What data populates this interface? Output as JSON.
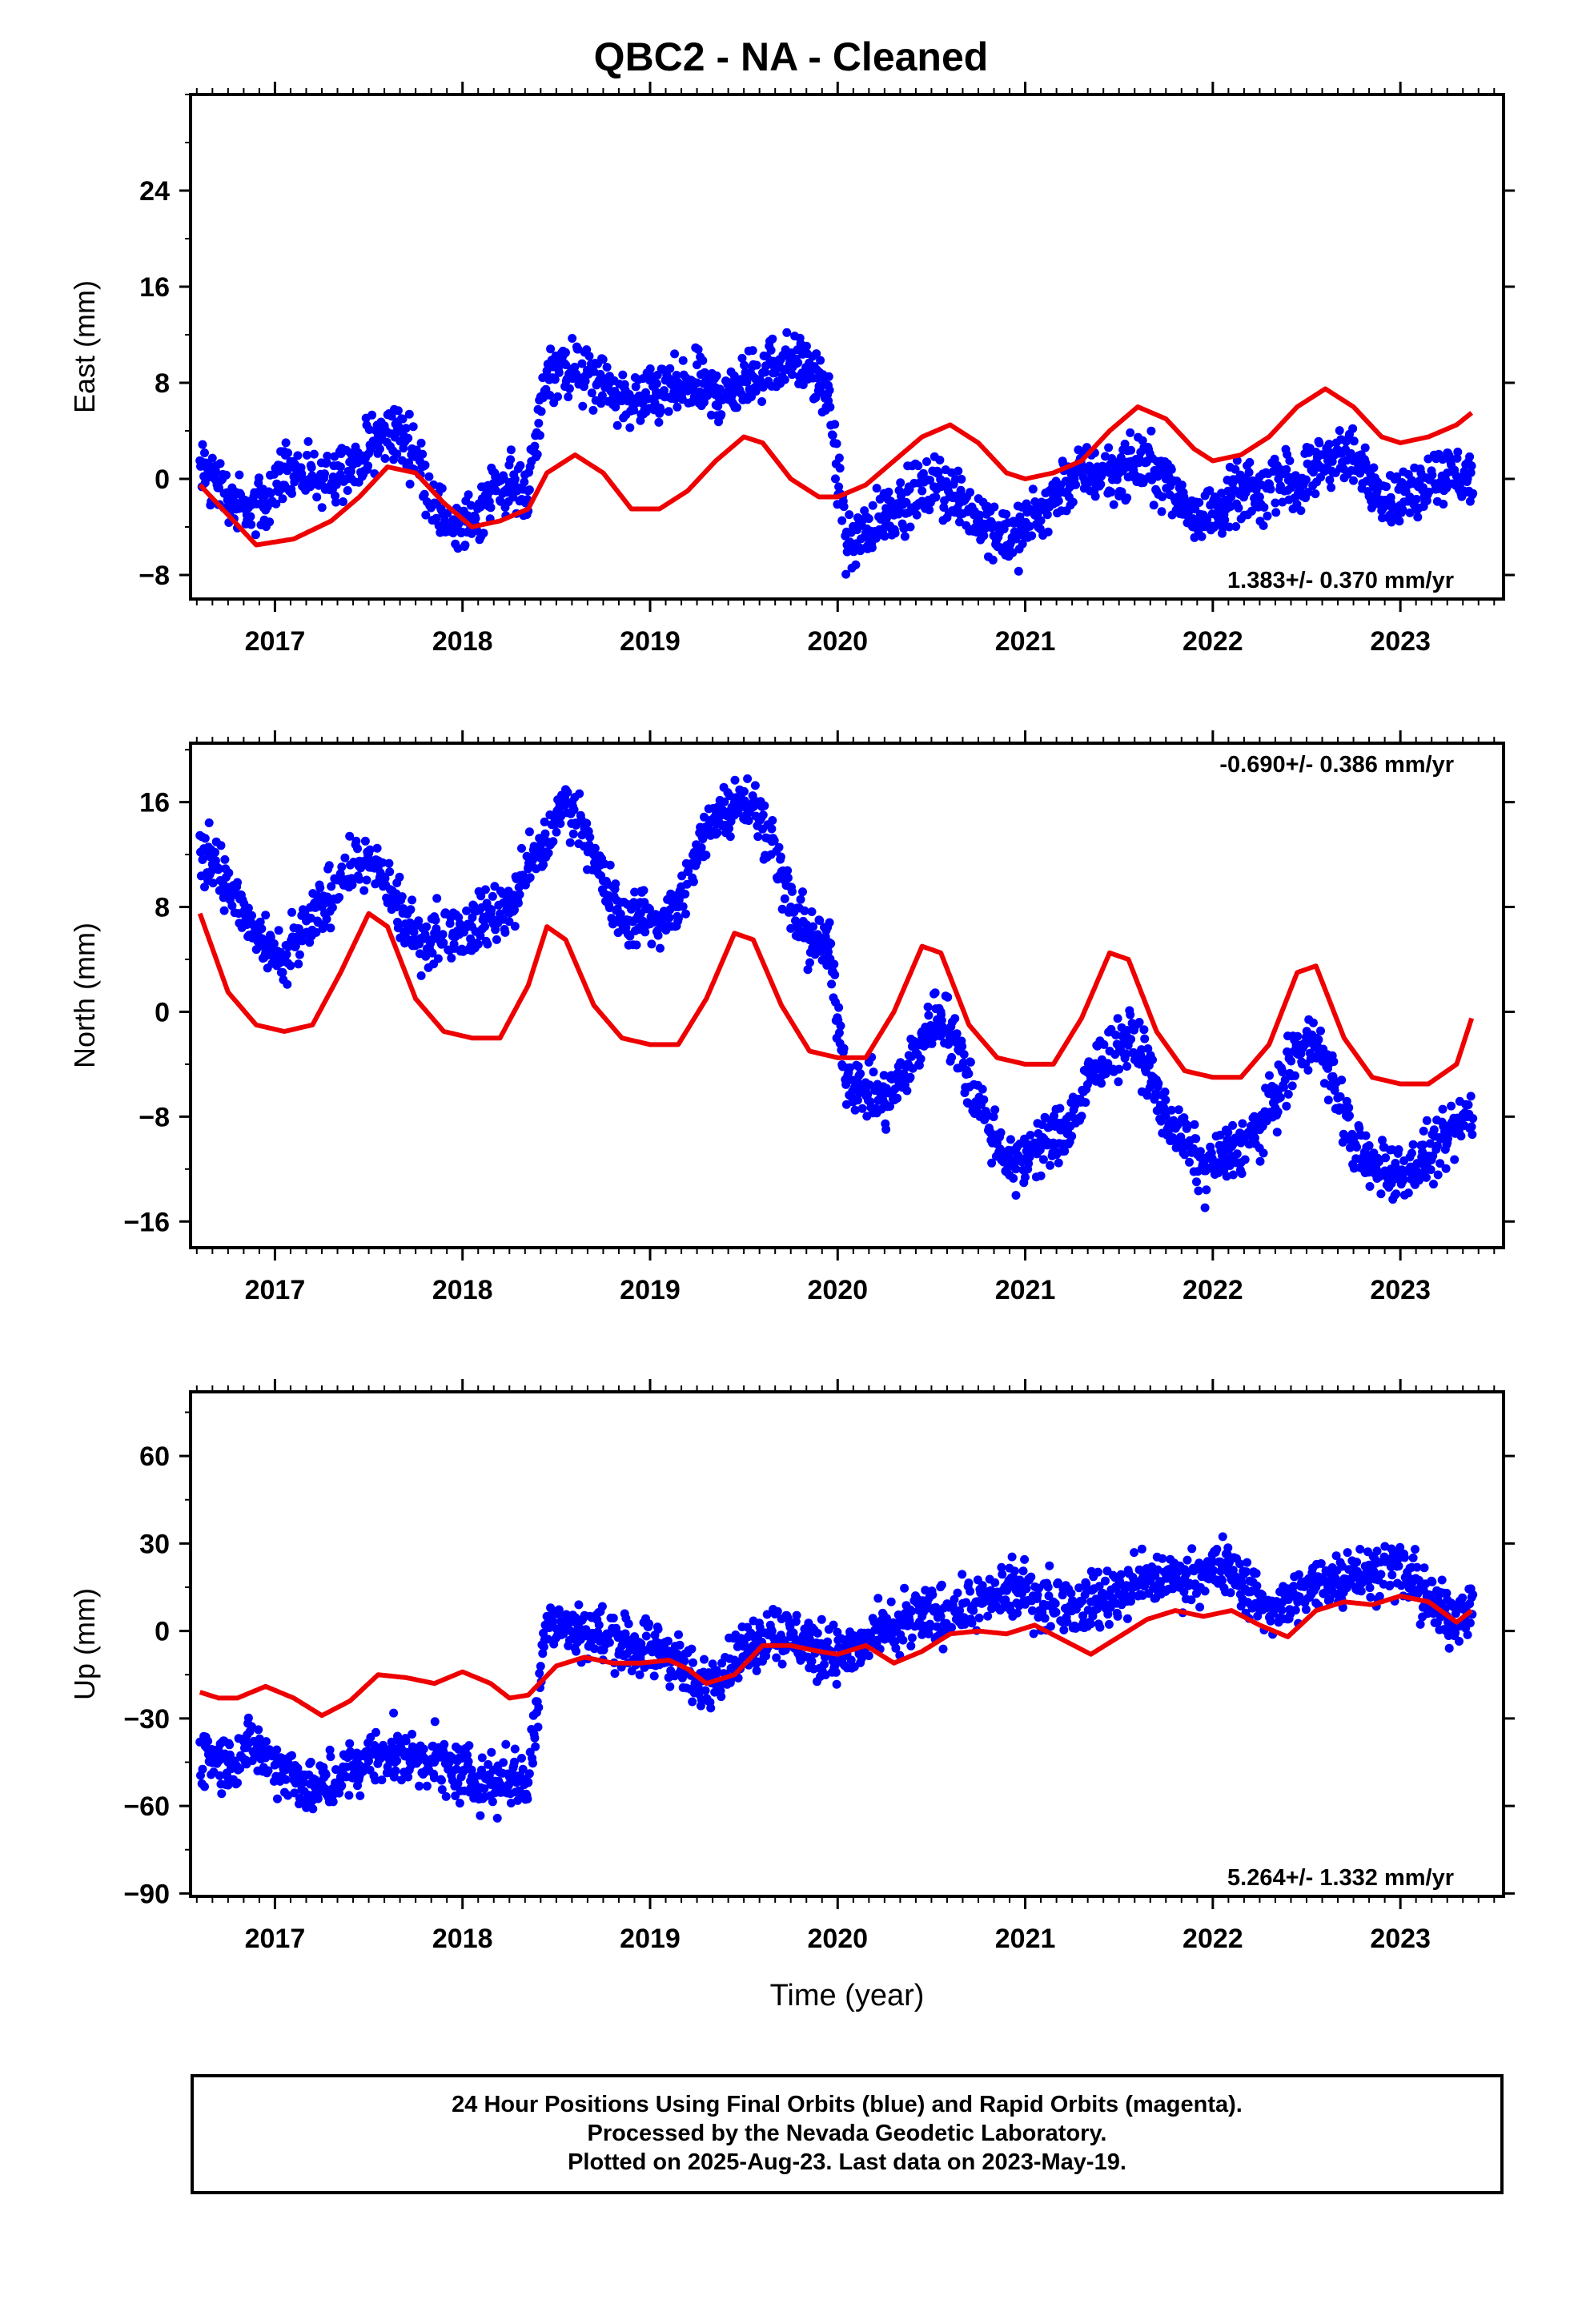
{
  "title": "QBC2  - NA - Cleaned",
  "footer": {
    "line1": "24 Hour Positions Using Final Orbits (blue) and Rapid Orbits (magenta).",
    "line2": "Processed by the Nevada Geodetic Laboratory.",
    "line3": "Plotted on 2025-Aug-23. Last data on 2023-May-19."
  },
  "colors": {
    "data": "#0000ff",
    "model": "#ee0000",
    "frame": "#000000"
  },
  "chart_data": [
    {
      "type": "scatter",
      "ylabel": "East (mm)",
      "xlabel": "",
      "rate_text": "1.383+/- 0.370 mm/yr",
      "rate_position": "bottom-right",
      "xlim": [
        2016.55,
        2023.55
      ],
      "ylim": [
        -10,
        32
      ],
      "yticks": [
        -8,
        0,
        8,
        16,
        24
      ],
      "xticks": [
        2017,
        2018,
        2019,
        2020,
        2021,
        2022,
        2023
      ],
      "series": [
        {
          "kind": "points",
          "x": [
            2016.65,
            2016.75,
            2016.85,
            2016.95,
            2017.05,
            2017.15,
            2017.25,
            2017.35,
            2017.45,
            2017.55,
            2017.65,
            2017.75,
            2017.85,
            2017.95,
            2018.05,
            2018.15,
            2018.25,
            2018.35,
            2018.45,
            2018.55,
            2018.65,
            2018.75,
            2018.85,
            2018.95,
            2019.05,
            2019.15,
            2019.25,
            2019.35,
            2019.45,
            2019.55,
            2019.65,
            2019.75,
            2019.85,
            2019.95,
            2020.05,
            2020.15,
            2020.25,
            2020.35,
            2020.45,
            2020.55,
            2020.65,
            2020.75,
            2020.85,
            2020.95,
            2021.05,
            2021.15,
            2021.25,
            2021.35,
            2021.45,
            2021.55,
            2021.65,
            2021.75,
            2021.85,
            2021.95,
            2022.05,
            2022.15,
            2022.25,
            2022.35,
            2022.45,
            2022.55,
            2022.65,
            2022.75,
            2022.85,
            2022.95,
            2023.05,
            2023.15,
            2023.25,
            2023.35
          ],
          "y": [
            0.5,
            -1.5,
            -3,
            -2,
            1,
            0,
            -0.5,
            1,
            1.5,
            3.5,
            4,
            2,
            -2,
            -4.5,
            -3.5,
            -1,
            -0.5,
            -1,
            9,
            9.5,
            8.5,
            8,
            6.5,
            6.5,
            7,
            7.5,
            8,
            7,
            7.5,
            8.5,
            9.5,
            10,
            9,
            6.5,
            -5.5,
            -4.5,
            -3,
            -2,
            -1,
            -0.5,
            -2,
            -3,
            -4,
            -5,
            -3,
            -1.5,
            0,
            0.5,
            0.5,
            1,
            1.5,
            0,
            -2,
            -3,
            -2.5,
            -1,
            -1.5,
            0,
            -0.5,
            1,
            2,
            1.5,
            0,
            -2,
            -1.5,
            0,
            0.5,
            0
          ]
        },
        {
          "kind": "line",
          "x": [
            2016.6,
            2016.75,
            2016.9,
            2017.1,
            2017.3,
            2017.45,
            2017.6,
            2017.75,
            2017.9,
            2018.05,
            2018.2,
            2018.35,
            2018.45,
            2018.6,
            2018.75,
            2018.9,
            2019.05,
            2019.2,
            2019.35,
            2019.5,
            2019.6,
            2019.75,
            2019.9,
            2020.0,
            2020.15,
            2020.3,
            2020.45,
            2020.6,
            2020.75,
            2020.9,
            2021.0,
            2021.15,
            2021.3,
            2021.45,
            2021.6,
            2021.75,
            2021.9,
            2022.0,
            2022.15,
            2022.3,
            2022.45,
            2022.6,
            2022.75,
            2022.9,
            2023.0,
            2023.15,
            2023.3,
            2023.38
          ],
          "y": [
            -0.5,
            -3,
            -5.5,
            -5,
            -3.5,
            -1.5,
            1,
            0.5,
            -2,
            -4,
            -3.5,
            -2.5,
            0.5,
            2,
            0.5,
            -2.5,
            -2.5,
            -1,
            1.5,
            3.5,
            3,
            0,
            -1.5,
            -1.5,
            -0.5,
            1.5,
            3.5,
            4.5,
            3,
            0.5,
            0,
            0.5,
            1.5,
            4,
            6,
            5,
            2.5,
            1.5,
            2,
            3.5,
            6,
            7.5,
            6,
            3.5,
            3,
            3.5,
            4.5,
            5.5
          ]
        }
      ]
    },
    {
      "type": "scatter",
      "ylabel": "North (mm)",
      "xlabel": "",
      "rate_text": "-0.690+/- 0.386 mm/yr",
      "rate_position": "top-right",
      "xlim": [
        2016.55,
        2023.55
      ],
      "ylim": [
        -18,
        20.5
      ],
      "yticks": [
        -16,
        -8,
        0,
        8,
        16
      ],
      "xticks": [
        2017,
        2018,
        2019,
        2020,
        2021,
        2022,
        2023
      ],
      "series": [
        {
          "kind": "points",
          "x": [
            2016.65,
            2016.75,
            2016.85,
            2016.95,
            2017.05,
            2017.15,
            2017.25,
            2017.35,
            2017.45,
            2017.55,
            2017.65,
            2017.75,
            2017.85,
            2017.95,
            2018.05,
            2018.15,
            2018.25,
            2018.35,
            2018.45,
            2018.55,
            2018.65,
            2018.75,
            2018.85,
            2018.95,
            2019.05,
            2019.15,
            2019.25,
            2019.35,
            2019.45,
            2019.55,
            2019.65,
            2019.75,
            2019.85,
            2019.95,
            2020.05,
            2020.15,
            2020.25,
            2020.35,
            2020.45,
            2020.55,
            2020.65,
            2020.75,
            2020.85,
            2020.95,
            2021.05,
            2021.15,
            2021.25,
            2021.35,
            2021.45,
            2021.55,
            2021.65,
            2021.75,
            2021.85,
            2021.95,
            2022.05,
            2022.15,
            2022.25,
            2022.35,
            2022.45,
            2022.55,
            2022.65,
            2022.75,
            2022.85,
            2022.95,
            2023.05,
            2023.15,
            2023.25,
            2023.35
          ],
          "y": [
            12,
            9.5,
            7,
            4.5,
            4,
            6,
            8,
            10,
            11.5,
            11,
            8,
            5.5,
            6,
            6,
            6.5,
            7.5,
            8,
            11,
            13,
            16,
            14,
            10,
            7,
            7.5,
            7,
            8,
            12,
            15,
            16,
            16,
            13,
            8,
            5.5,
            5,
            -5,
            -6,
            -7,
            -5,
            -2,
            0,
            -3,
            -7,
            -10,
            -12,
            -10,
            -10,
            -8,
            -5,
            -3,
            -2,
            -4,
            -8,
            -10,
            -12,
            -11,
            -10,
            -9,
            -6,
            -3,
            -2,
            -6,
            -10,
            -12,
            -12,
            -12,
            -11,
            -10,
            -8
          ]
        },
        {
          "kind": "line",
          "x": [
            2016.6,
            2016.75,
            2016.9,
            2017.05,
            2017.2,
            2017.35,
            2017.5,
            2017.6,
            2017.75,
            2017.9,
            2018.05,
            2018.2,
            2018.35,
            2018.45,
            2018.55,
            2018.7,
            2018.85,
            2019.0,
            2019.15,
            2019.3,
            2019.45,
            2019.55,
            2019.7,
            2019.85,
            2020.0,
            2020.15,
            2020.3,
            2020.45,
            2020.55,
            2020.7,
            2020.85,
            2021.0,
            2021.15,
            2021.3,
            2021.45,
            2021.55,
            2021.7,
            2021.85,
            2022.0,
            2022.15,
            2022.3,
            2022.45,
            2022.55,
            2022.7,
            2022.85,
            2023.0,
            2023.15,
            2023.3,
            2023.38
          ],
          "y": [
            7.5,
            1.5,
            -1,
            -1.5,
            -1,
            3,
            7.5,
            6.5,
            1,
            -1.5,
            -2,
            -2,
            2,
            6.5,
            5.5,
            0.5,
            -2,
            -2.5,
            -2.5,
            1,
            6,
            5.5,
            0.5,
            -3,
            -3.5,
            -3.5,
            0,
            5,
            4.5,
            -1,
            -3.5,
            -4,
            -4,
            -0.5,
            4.5,
            4,
            -1.5,
            -4.5,
            -5,
            -5,
            -2.5,
            3,
            3.5,
            -2,
            -5,
            -5.5,
            -5.5,
            -4,
            -0.5
          ]
        }
      ]
    },
    {
      "type": "scatter",
      "ylabel": "Up (mm)",
      "xlabel": "Time (year)",
      "rate_text": "5.264+/- 1.332 mm/yr",
      "rate_position": "bottom-right",
      "xlim": [
        2016.55,
        2023.55
      ],
      "ylim": [
        -91,
        82
      ],
      "yticks": [
        -90,
        -60,
        -30,
        0,
        30,
        60
      ],
      "xticks": [
        2017,
        2018,
        2019,
        2020,
        2021,
        2022,
        2023
      ],
      "series": [
        {
          "kind": "points",
          "x": [
            2016.65,
            2016.75,
            2016.85,
            2016.95,
            2017.05,
            2017.15,
            2017.25,
            2017.35,
            2017.45,
            2017.55,
            2017.65,
            2017.75,
            2017.85,
            2017.95,
            2018.05,
            2018.15,
            2018.25,
            2018.35,
            2018.45,
            2018.55,
            2018.65,
            2018.75,
            2018.85,
            2018.95,
            2019.05,
            2019.15,
            2019.25,
            2019.35,
            2019.45,
            2019.55,
            2019.65,
            2019.75,
            2019.85,
            2019.95,
            2020.05,
            2020.15,
            2020.25,
            2020.35,
            2020.45,
            2020.55,
            2020.65,
            2020.75,
            2020.85,
            2020.95,
            2021.05,
            2021.15,
            2021.25,
            2021.35,
            2021.45,
            2021.55,
            2021.65,
            2021.75,
            2021.85,
            2021.95,
            2022.05,
            2022.15,
            2022.25,
            2022.35,
            2022.45,
            2022.55,
            2022.65,
            2022.75,
            2022.85,
            2022.95,
            2023.05,
            2023.15,
            2023.25,
            2023.35
          ],
          "y": [
            -42,
            -45,
            -40,
            -43,
            -47,
            -52,
            -55,
            -50,
            -46,
            -43,
            -42,
            -43,
            -45,
            -48,
            -50,
            -52,
            -50,
            -52,
            5,
            2,
            0,
            -2,
            -5,
            -5,
            -7,
            -10,
            -20,
            -15,
            -10,
            -5,
            0,
            -2,
            -5,
            -8,
            -8,
            -5,
            0,
            2,
            5,
            5,
            7,
            10,
            12,
            14,
            12,
            10,
            8,
            10,
            12,
            15,
            17,
            18,
            18,
            20,
            22,
            18,
            10,
            8,
            12,
            15,
            18,
            20,
            20,
            22,
            18,
            10,
            5,
            8
          ]
        },
        {
          "kind": "line",
          "x": [
            2016.6,
            2016.7,
            2016.8,
            2016.95,
            2017.1,
            2017.25,
            2017.4,
            2017.55,
            2017.7,
            2017.85,
            2018.0,
            2018.15,
            2018.25,
            2018.35,
            2018.5,
            2018.65,
            2018.8,
            2018.95,
            2019.1,
            2019.2,
            2019.3,
            2019.45,
            2019.6,
            2019.75,
            2019.9,
            2020.0,
            2020.15,
            2020.3,
            2020.45,
            2020.6,
            2020.75,
            2020.9,
            2021.05,
            2021.2,
            2021.35,
            2021.5,
            2021.65,
            2021.8,
            2021.95,
            2022.1,
            2022.25,
            2022.4,
            2022.55,
            2022.7,
            2022.85,
            2023.0,
            2023.15,
            2023.3,
            2023.38
          ],
          "y": [
            -21,
            -23,
            -23,
            -19,
            -23,
            -29,
            -24,
            -15,
            -16,
            -18,
            -14,
            -18,
            -23,
            -22,
            -12,
            -9,
            -11,
            -11,
            -10,
            -13,
            -18,
            -15,
            -5,
            -5,
            -7,
            -8,
            -5,
            -11,
            -7,
            -1,
            0,
            -1,
            2,
            -3,
            -8,
            -2,
            4,
            7,
            5,
            7,
            2,
            -2,
            7,
            10,
            9,
            12,
            10,
            3,
            7
          ]
        }
      ]
    }
  ]
}
